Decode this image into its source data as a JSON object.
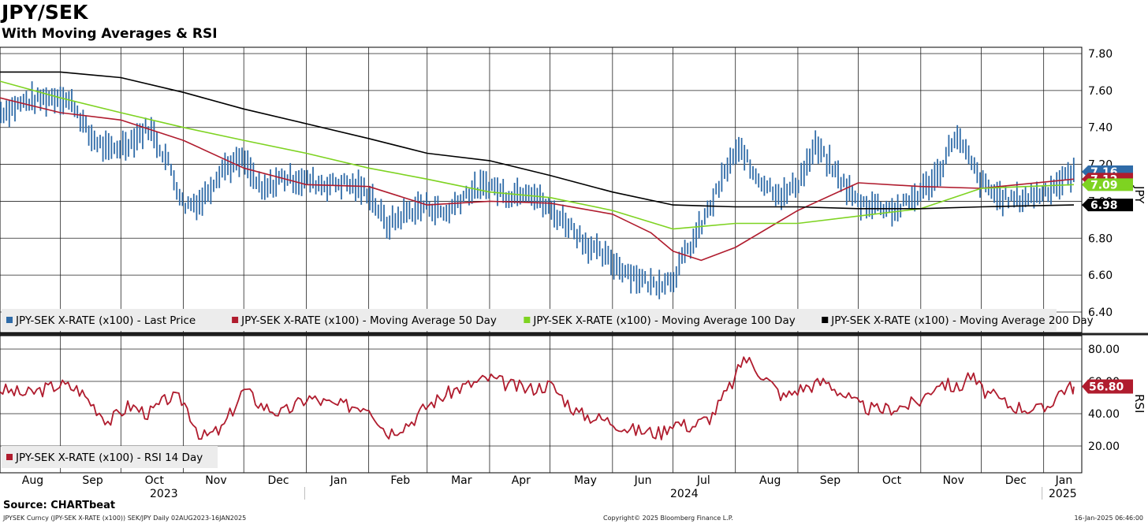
{
  "title": "JPY/SEK",
  "subtitle": "With Moving Averages & RSI",
  "source": "Source: CHARTbeat",
  "footer": {
    "left": "JPYSEK Curncy (JPY-SEK X-RATE (x100)) SEK/JPY  Daily 02AUG2023-16JAN2025",
    "center": "Copyright© 2025 Bloomberg Finance L.P.",
    "right": "16-Jan-2025 06:46:00"
  },
  "colors": {
    "price": "#2f6ba8",
    "ma50": "#b01c2e",
    "ma100": "#7ed321",
    "ma200": "#000000",
    "rsi": "#b01c2e"
  },
  "chart_data": [
    {
      "type": "line",
      "name": "price-panel",
      "ylabel": "JPY",
      "ylim": [
        6.38,
        7.84
      ],
      "y_ticks": [
        "7.80",
        "7.60",
        "7.40",
        "7.20",
        "7.00",
        "6.80",
        "6.60",
        "6.40"
      ],
      "x_month_labels": [
        "Aug",
        "Sep",
        "Oct",
        "Nov",
        "Dec",
        "Jan",
        "Feb",
        "Mar",
        "Apr",
        "May",
        "Jun",
        "Jul",
        "Aug",
        "Sep",
        "Oct",
        "Nov",
        "Dec",
        "Jan"
      ],
      "x_year_labels": [
        "2023",
        "2024",
        "2025"
      ],
      "grid": true,
      "legend": [
        "JPY-SEK X-RATE (x100) - Last Price",
        "JPY-SEK X-RATE (x100) - Moving Average 50 Day",
        "JPY-SEK X-RATE (x100) - Moving Average 100 Day",
        "JPY-SEK X-RATE (x100) - Moving Average 200 Day"
      ],
      "legend_position": "bottom-left",
      "series": [
        {
          "name": "JPY-SEK X-RATE (x100) - Last Price",
          "style": "bar",
          "x": [
            "2023-08-02",
            "2023-08-15",
            "2023-09-01",
            "2023-09-08",
            "2023-09-15",
            "2023-09-25",
            "2023-10-05",
            "2023-10-15",
            "2023-10-25",
            "2023-11-01",
            "2023-11-10",
            "2023-11-20",
            "2023-12-01",
            "2023-12-10",
            "2023-12-20",
            "2024-01-02",
            "2024-01-10",
            "2024-01-20",
            "2024-02-01",
            "2024-02-10",
            "2024-02-20",
            "2024-03-01",
            "2024-03-10",
            "2024-03-20",
            "2024-04-01",
            "2024-04-10",
            "2024-04-20",
            "2024-05-01",
            "2024-05-10",
            "2024-05-20",
            "2024-06-01",
            "2024-06-10",
            "2024-06-20",
            "2024-07-01",
            "2024-07-05",
            "2024-07-12",
            "2024-07-20",
            "2024-07-30",
            "2024-08-05",
            "2024-08-08",
            "2024-08-15",
            "2024-08-25",
            "2024-09-01",
            "2024-09-10",
            "2024-09-20",
            "2024-10-01",
            "2024-10-10",
            "2024-10-20",
            "2024-11-01",
            "2024-11-10",
            "2024-11-18",
            "2024-11-25",
            "2024-12-01",
            "2024-12-10",
            "2024-12-20",
            "2025-01-01",
            "2025-01-10",
            "2025-01-16"
          ],
          "values": [
            7.48,
            7.54,
            7.57,
            7.52,
            7.36,
            7.27,
            7.32,
            7.4,
            7.2,
            6.98,
            7.0,
            7.18,
            7.22,
            7.05,
            7.13,
            7.11,
            7.09,
            7.1,
            7.05,
            6.87,
            6.94,
            6.98,
            6.93,
            7.04,
            7.09,
            7.03,
            7.07,
            6.95,
            6.88,
            6.76,
            6.67,
            6.61,
            6.55,
            6.58,
            6.67,
            6.8,
            6.98,
            7.23,
            7.28,
            7.18,
            7.1,
            7.03,
            7.1,
            7.3,
            7.15,
            6.99,
            6.98,
            6.95,
            7.05,
            7.15,
            7.36,
            7.23,
            7.1,
            7.02,
            7.01,
            7.05,
            7.11,
            7.16
          ]
        },
        {
          "name": "JPY-SEK X-RATE (x100) - Moving Average 50 Day",
          "x": [
            "2023-08-02",
            "2023-09-01",
            "2023-10-01",
            "2023-11-01",
            "2023-12-01",
            "2024-01-01",
            "2024-02-01",
            "2024-03-01",
            "2024-04-01",
            "2024-05-01",
            "2024-06-01",
            "2024-06-20",
            "2024-07-01",
            "2024-07-15",
            "2024-08-01",
            "2024-09-01",
            "2024-10-01",
            "2024-11-01",
            "2024-12-01",
            "2025-01-16"
          ],
          "values": [
            7.56,
            7.48,
            7.44,
            7.33,
            7.18,
            7.09,
            7.08,
            6.98,
            7.0,
            6.99,
            6.93,
            6.83,
            6.73,
            6.68,
            6.75,
            6.95,
            7.1,
            7.08,
            7.07,
            7.12
          ]
        },
        {
          "name": "JPY-SEK X-RATE (x100) - Moving Average 100 Day",
          "x": [
            "2023-08-02",
            "2023-09-01",
            "2023-10-01",
            "2023-11-01",
            "2023-12-01",
            "2024-01-01",
            "2024-02-01",
            "2024-03-01",
            "2024-04-01",
            "2024-05-01",
            "2024-06-01",
            "2024-07-01",
            "2024-08-01",
            "2024-09-01",
            "2024-10-01",
            "2024-11-01",
            "2024-12-01",
            "2025-01-16"
          ],
          "values": [
            7.65,
            7.56,
            7.48,
            7.4,
            7.33,
            7.26,
            7.18,
            7.12,
            7.05,
            7.02,
            6.95,
            6.85,
            6.88,
            6.88,
            6.92,
            6.96,
            7.07,
            7.09
          ]
        },
        {
          "name": "JPY-SEK X-RATE (x100) - Moving Average 200 Day",
          "x": [
            "2023-08-02",
            "2023-09-01",
            "2023-10-01",
            "2023-11-01",
            "2023-12-01",
            "2024-01-01",
            "2024-02-01",
            "2024-03-01",
            "2024-04-01",
            "2024-05-01",
            "2024-06-01",
            "2024-07-01",
            "2024-08-01",
            "2024-09-01",
            "2024-10-01",
            "2024-11-01",
            "2024-12-01",
            "2025-01-16"
          ],
          "values": [
            7.7,
            7.7,
            7.67,
            7.59,
            7.5,
            7.42,
            7.34,
            7.26,
            7.22,
            7.14,
            7.05,
            6.98,
            6.97,
            6.97,
            6.96,
            6.96,
            6.97,
            6.98
          ]
        }
      ],
      "last_value_labels": [
        {
          "series": "JPY-SEK X-RATE (x100) - Last Price",
          "text": "7.16",
          "value": 7.16
        },
        {
          "series": "JPY-SEK X-RATE (x100) - Moving Average 50 Day",
          "text": "7.12",
          "value": 7.12
        },
        {
          "series": "JPY-SEK X-RATE (x100) - Moving Average 100 Day",
          "text": "7.09",
          "value": 7.09
        },
        {
          "series": "JPY-SEK X-RATE (x100) - Moving Average 200 Day",
          "text": "6.98",
          "value": 6.98
        }
      ]
    },
    {
      "type": "line",
      "name": "rsi-panel",
      "ylabel": "RSI",
      "ylim": [
        10,
        85
      ],
      "y_ticks": [
        "80.00",
        "60.00",
        "40.00",
        "20.00"
      ],
      "legend": [
        "JPY-SEK X-RATE (x100) - RSI 14 Day"
      ],
      "legend_position": "bottom-left",
      "series": [
        {
          "name": "JPY-SEK X-RATE (x100) - RSI 14 Day",
          "x": [
            "2023-08-02",
            "2023-08-15",
            "2023-09-01",
            "2023-09-10",
            "2023-09-25",
            "2023-10-05",
            "2023-10-15",
            "2023-10-25",
            "2023-11-01",
            "2023-11-10",
            "2023-11-20",
            "2023-12-01",
            "2023-12-10",
            "2023-12-20",
            "2024-01-02",
            "2024-01-15",
            "2024-02-01",
            "2024-02-10",
            "2024-02-22",
            "2024-03-01",
            "2024-03-15",
            "2024-04-01",
            "2024-04-10",
            "2024-04-20",
            "2024-05-01",
            "2024-05-15",
            "2024-06-01",
            "2024-06-10",
            "2024-06-25",
            "2024-07-01",
            "2024-07-10",
            "2024-07-20",
            "2024-08-01",
            "2024-08-05",
            "2024-08-10",
            "2024-08-25",
            "2024-09-01",
            "2024-09-15",
            "2024-10-01",
            "2024-10-10",
            "2024-10-25",
            "2024-11-01",
            "2024-11-10",
            "2024-11-20",
            "2024-11-25",
            "2024-12-01",
            "2024-12-15",
            "2025-01-01",
            "2025-01-10",
            "2025-01-16"
          ],
          "values": [
            55,
            52,
            58,
            55,
            35,
            45,
            40,
            50,
            48,
            25,
            30,
            55,
            45,
            40,
            50,
            45,
            45,
            28,
            35,
            45,
            55,
            62,
            58,
            55,
            58,
            40,
            35,
            30,
            28,
            35,
            32,
            38,
            62,
            75,
            70,
            50,
            55,
            60,
            45,
            42,
            45,
            48,
            60,
            55,
            65,
            55,
            45,
            42,
            55,
            56.8
          ]
        }
      ],
      "last_value_labels": [
        {
          "series": "JPY-SEK X-RATE (x100) - RSI 14 Day",
          "text": "56.80",
          "value": 56.8
        }
      ]
    }
  ]
}
